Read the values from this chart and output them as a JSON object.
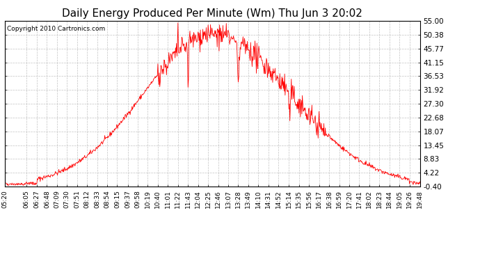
{
  "title": "Daily Energy Produced Per Minute (Wm) Thu Jun 3 20:02",
  "copyright": "Copyright 2010 Cartronics.com",
  "line_color": "#FF0000",
  "background_color": "#FFFFFF",
  "plot_bg_color": "#FFFFFF",
  "grid_color": "#BBBBBB",
  "ylim": [
    -0.4,
    55.0
  ],
  "yticks": [
    -0.4,
    4.22,
    8.83,
    13.45,
    18.07,
    22.68,
    27.3,
    31.92,
    36.53,
    41.15,
    45.77,
    50.38,
    55.0
  ],
  "xtick_labels": [
    "05:20",
    "06:05",
    "06:27",
    "06:48",
    "07:09",
    "07:30",
    "07:51",
    "08:12",
    "08:33",
    "08:54",
    "09:15",
    "09:37",
    "09:58",
    "10:19",
    "10:40",
    "11:01",
    "11:22",
    "11:43",
    "12:04",
    "12:25",
    "12:46",
    "13:07",
    "13:28",
    "13:49",
    "14:10",
    "14:31",
    "14:52",
    "15:14",
    "15:35",
    "15:56",
    "16:17",
    "16:38",
    "16:59",
    "17:20",
    "17:41",
    "18:02",
    "18:23",
    "18:44",
    "19:05",
    "19:26",
    "19:48"
  ],
  "title_fontsize": 11,
  "copyright_fontsize": 6.5,
  "tick_fontsize": 6.5,
  "ytick_fontsize": 7.5
}
